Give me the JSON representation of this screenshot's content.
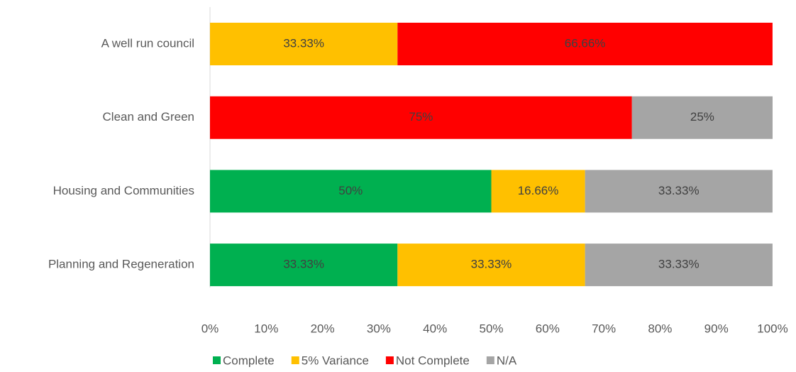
{
  "chart_data": {
    "type": "stacked_bar_horizontal",
    "categories": [
      "A well run council",
      "Clean and Green",
      "Housing and Communities",
      "Planning and Regeneration"
    ],
    "series": [
      {
        "name": "Complete",
        "color": "#00b050",
        "values": [
          null,
          null,
          50,
          33.33
        ],
        "value_labels": [
          null,
          null,
          "50%",
          "33.33%"
        ]
      },
      {
        "name": "5% Variance",
        "color": "#ffc000",
        "values": [
          33.33,
          null,
          16.66,
          33.33
        ],
        "value_labels": [
          "33.33%",
          null,
          "16.66%",
          "33.33%"
        ]
      },
      {
        "name": "Not Complete",
        "color": "#ff0000",
        "values": [
          66.66,
          75,
          null,
          null
        ],
        "value_labels": [
          "66.66%",
          "75%",
          null,
          null
        ]
      },
      {
        "name": "N/A",
        "color": "#a5a5a5",
        "values": [
          null,
          25,
          33.33,
          33.33
        ],
        "value_labels": [
          null,
          "25%",
          "33.33%",
          "33.33%"
        ]
      }
    ],
    "xlim": [
      0,
      100
    ],
    "xticks": [
      {
        "value": 0,
        "label": "0%"
      },
      {
        "value": 10,
        "label": "10%"
      },
      {
        "value": 20,
        "label": "20%"
      },
      {
        "value": 30,
        "label": "30%"
      },
      {
        "value": 40,
        "label": "40%"
      },
      {
        "value": 50,
        "label": "50%"
      },
      {
        "value": 60,
        "label": "60%"
      },
      {
        "value": 70,
        "label": "70%"
      },
      {
        "value": 80,
        "label": "80%"
      },
      {
        "value": 90,
        "label": "90%"
      },
      {
        "value": 100,
        "label": "100%"
      }
    ],
    "legend": "bottom"
  }
}
